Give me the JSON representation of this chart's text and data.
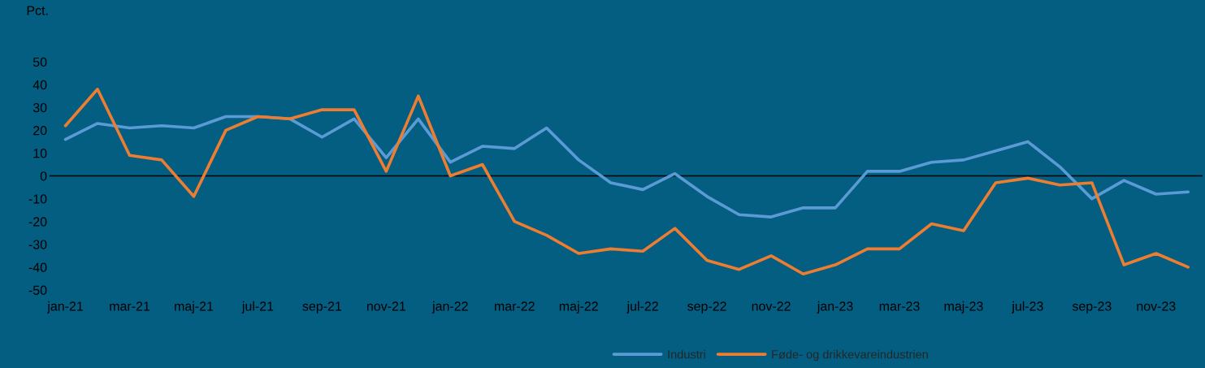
{
  "chart_data": {
    "type": "line",
    "ylabel": "Pct.",
    "categories": [
      "jan-21",
      null,
      "mar-21",
      null,
      "maj-21",
      null,
      "jul-21",
      null,
      "sep-21",
      null,
      "nov-21",
      null,
      "jan-22",
      null,
      "mar-22",
      null,
      "maj-22",
      null,
      "jul-22",
      null,
      "sep-22",
      null,
      "nov-22",
      null,
      "jan-23",
      null,
      "mar-23",
      null,
      "maj-23",
      null,
      "jul-23",
      null,
      "sep-23",
      null,
      "nov-23",
      null
    ],
    "series": [
      {
        "name": "Industri",
        "color": "#5b9bd5",
        "values": [
          16,
          23,
          21,
          22,
          21,
          26,
          26,
          25,
          17,
          25,
          8,
          25,
          6,
          13,
          12,
          21,
          7,
          -3,
          -6,
          1,
          -9,
          -17,
          -18,
          -14,
          -14,
          2,
          2,
          6,
          7,
          11,
          15,
          4,
          -10,
          -2,
          -8,
          -7
        ]
      },
      {
        "name": "Føde- og drikkevareindustrien",
        "color": "#ed7d31",
        "values": [
          22,
          38,
          9,
          7,
          -9,
          20,
          26,
          25,
          29,
          29,
          2,
          35,
          0,
          5,
          -20,
          -26,
          -34,
          -32,
          -33,
          -23,
          -37,
          -41,
          -35,
          -43,
          -39,
          -32,
          -32,
          -21,
          -24,
          -3,
          -1,
          -4,
          -3,
          -39,
          -34,
          -40
        ]
      }
    ],
    "ylim": [
      -50,
      50
    ],
    "yticks": [
      -50,
      -40,
      -30,
      -20,
      -10,
      0,
      10,
      20,
      30,
      40,
      50
    ],
    "ref_lines": [
      {
        "axis": "y",
        "value": 0,
        "color": "#000000"
      }
    ],
    "grid": false,
    "legend": "bottom",
    "marker": "none",
    "line_style": "solid"
  }
}
